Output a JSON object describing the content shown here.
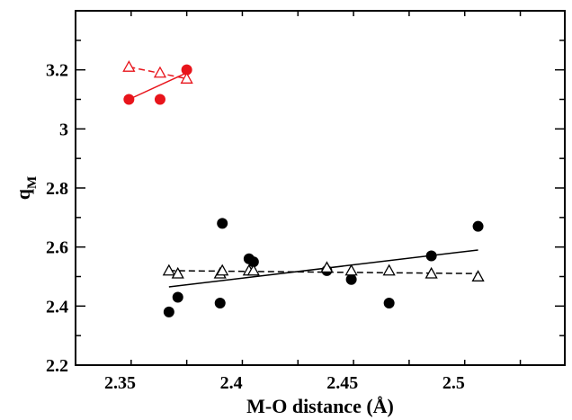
{
  "chart_data": {
    "type": "scatter",
    "title": "",
    "xlabel": "M-O distance  (Å)",
    "ylabel": {
      "main": "q",
      "sub": "M"
    },
    "xlim": [
      2.33,
      2.55
    ],
    "ylim": [
      2.2,
      3.4
    ],
    "x_ticks": [
      2.35,
      2.4,
      2.45,
      2.5
    ],
    "x_tick_labels": [
      "2.35",
      "2.4",
      "2.45",
      "2.5"
    ],
    "y_ticks": [
      2.2,
      2.4,
      2.6,
      2.8,
      3.0,
      3.2
    ],
    "y_tick_labels": [
      "2.2",
      "2.4",
      "2.6",
      "2.8",
      "3",
      "3.2"
    ],
    "grid": false,
    "legend": "none",
    "series": [
      {
        "marker": "filled-circle",
        "color": "#000000",
        "points": [
          [
            2.372,
            2.38
          ],
          [
            2.376,
            2.43
          ],
          [
            2.395,
            2.41
          ],
          [
            2.396,
            2.68
          ],
          [
            2.408,
            2.56
          ],
          [
            2.41,
            2.55
          ],
          [
            2.443,
            2.52
          ],
          [
            2.454,
            2.49
          ],
          [
            2.471,
            2.41
          ],
          [
            2.49,
            2.57
          ],
          [
            2.511,
            2.67
          ]
        ],
        "fit_line": {
          "style": "solid",
          "from": [
            2.372,
            2.465
          ],
          "to": [
            2.511,
            2.59
          ]
        }
      },
      {
        "marker": "open-triangle",
        "color": "#000000",
        "points": [
          [
            2.372,
            2.52
          ],
          [
            2.376,
            2.51
          ],
          [
            2.395,
            2.51
          ],
          [
            2.396,
            2.52
          ],
          [
            2.408,
            2.52
          ],
          [
            2.41,
            2.52
          ],
          [
            2.443,
            2.53
          ],
          [
            2.454,
            2.52
          ],
          [
            2.471,
            2.52
          ],
          [
            2.49,
            2.51
          ],
          [
            2.511,
            2.5
          ]
        ],
        "fit_line": {
          "style": "dashed",
          "from": [
            2.372,
            2.52
          ],
          "to": [
            2.511,
            2.51
          ]
        }
      },
      {
        "marker": "filled-circle",
        "color": "#e8141b",
        "points": [
          [
            2.354,
            3.1
          ],
          [
            2.368,
            3.1
          ],
          [
            2.38,
            3.2
          ]
        ],
        "fit_line": {
          "style": "solid",
          "from": [
            2.354,
            3.1
          ],
          "to": [
            2.38,
            3.19
          ]
        }
      },
      {
        "marker": "open-triangle",
        "color": "#e8141b",
        "points": [
          [
            2.354,
            3.21
          ],
          [
            2.368,
            3.19
          ],
          [
            2.38,
            3.17
          ]
        ],
        "fit_line": {
          "style": "dashed",
          "from": [
            2.354,
            3.21
          ],
          "to": [
            2.38,
            3.17
          ]
        }
      }
    ]
  }
}
